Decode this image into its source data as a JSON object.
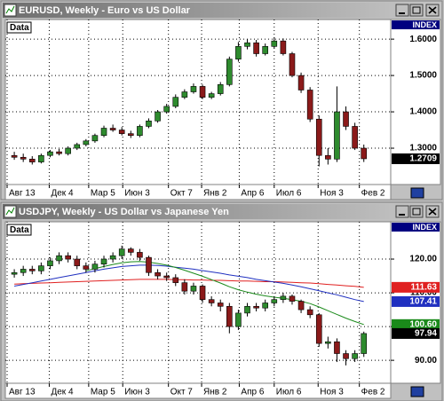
{
  "chart_data": [
    {
      "type": "candlestick",
      "title": "EURUSD, Weekly - Euro vs US Dollar",
      "legend_label": "Data",
      "axis_header": "INDEX",
      "up_color": "#2e8b2e",
      "down_color": "#8b1a1a",
      "open": [
        1.28,
        1.275,
        1.27,
        1.262,
        1.28,
        1.29,
        1.285,
        1.3,
        1.31,
        1.32,
        1.335,
        1.355,
        1.35,
        1.34,
        1.335,
        1.36,
        1.375,
        1.4,
        1.415,
        1.44,
        1.455,
        1.47,
        1.44,
        1.45,
        1.475,
        1.545,
        1.58,
        1.59,
        1.56,
        1.58,
        1.595,
        1.56,
        1.5,
        1.46,
        1.38,
        1.28,
        1.27,
        1.4,
        1.36,
        1.3
      ],
      "high": [
        1.29,
        1.285,
        1.278,
        1.285,
        1.295,
        1.298,
        1.305,
        1.315,
        1.325,
        1.34,
        1.362,
        1.365,
        1.358,
        1.348,
        1.365,
        1.382,
        1.405,
        1.422,
        1.448,
        1.462,
        1.478,
        1.475,
        1.455,
        1.482,
        1.552,
        1.592,
        1.6,
        1.598,
        1.588,
        1.605,
        1.602,
        1.565,
        1.508,
        1.468,
        1.39,
        1.3,
        1.47,
        1.415,
        1.37,
        1.31
      ],
      "low": [
        1.268,
        1.262,
        1.255,
        1.258,
        1.275,
        1.28,
        1.28,
        1.295,
        1.305,
        1.315,
        1.33,
        1.345,
        1.335,
        1.328,
        1.33,
        1.355,
        1.37,
        1.395,
        1.41,
        1.435,
        1.45,
        1.435,
        1.435,
        1.445,
        1.47,
        1.538,
        1.572,
        1.552,
        1.555,
        1.575,
        1.555,
        1.495,
        1.452,
        1.372,
        1.25,
        1.255,
        1.262,
        1.35,
        1.295,
        1.262
      ],
      "close": [
        1.275,
        1.27,
        1.262,
        1.28,
        1.29,
        1.285,
        1.3,
        1.31,
        1.32,
        1.335,
        1.355,
        1.35,
        1.34,
        1.335,
        1.36,
        1.375,
        1.4,
        1.415,
        1.44,
        1.455,
        1.47,
        1.44,
        1.45,
        1.475,
        1.545,
        1.58,
        1.59,
        1.56,
        1.58,
        1.595,
        1.56,
        1.5,
        1.46,
        1.38,
        1.28,
        1.27,
        1.4,
        1.36,
        1.3,
        1.2709
      ],
      "last_label": "1.2709",
      "last_color": "#000000",
      "ylim": [
        1.2,
        1.654
      ],
      "yticks": [
        {
          "value": 1.3,
          "label": "1.3000"
        },
        {
          "value": 1.4,
          "label": "1.4000"
        },
        {
          "value": 1.5,
          "label": "1.5000"
        },
        {
          "value": 1.6,
          "label": "1.6000"
        }
      ],
      "xlim": [
        -1,
        42
      ],
      "xticks": [
        {
          "value": -0.8,
          "label": "Авг 13"
        },
        {
          "value": 3.9,
          "label": "Дек 4"
        },
        {
          "value": 8.3,
          "label": "Мар 5"
        },
        {
          "value": 12.1,
          "label": "Июн 3"
        },
        {
          "value": 17.2,
          "label": "Окт 7"
        },
        {
          "value": 20.9,
          "label": "Янв 2"
        },
        {
          "value": 25.1,
          "label": "Апр 6"
        },
        {
          "value": 29,
          "label": "Июл 6"
        },
        {
          "value": 33.9,
          "label": "Ноя 3"
        },
        {
          "value": 38.5,
          "label": "Фев 2"
        }
      ],
      "grid": true
    },
    {
      "type": "candlestick",
      "title": "USDJPY, Weekly - US Dollar vs Japanese Yen",
      "legend_label": "Data",
      "axis_header": "INDEX",
      "up_color": "#2e8b2e",
      "down_color": "#8b1a1a",
      "open": [
        115.5,
        116,
        117,
        116.5,
        118,
        119.5,
        121,
        120,
        118,
        117,
        118.5,
        120,
        121,
        123,
        122,
        120.5,
        116,
        115,
        114.5,
        113,
        110.5,
        112,
        108,
        107,
        106,
        100,
        104,
        106,
        105.5,
        107,
        108,
        109,
        107.5,
        105,
        103.5,
        95,
        95.5,
        92,
        90.5,
        92
      ],
      "high": [
        117,
        118,
        118,
        119,
        120.5,
        122,
        122,
        121,
        119,
        119.5,
        121,
        122,
        124,
        123.5,
        123,
        121,
        117,
        116,
        115.5,
        114,
        113,
        112.5,
        109,
        108,
        107,
        105,
        107,
        107,
        108,
        109,
        110,
        109.5,
        108,
        106,
        104,
        97,
        96.5,
        93,
        93,
        98.5
      ],
      "low": [
        114.5,
        115,
        115.5,
        115.5,
        117,
        118.5,
        119,
        117,
        116,
        116,
        117.5,
        119,
        120,
        121,
        119.5,
        115,
        114,
        113.5,
        112,
        109.5,
        109.5,
        107,
        106,
        104.5,
        98,
        99,
        103,
        104.5,
        104.5,
        106,
        107,
        106.5,
        104,
        102.5,
        94,
        93.5,
        89.5,
        88.5,
        89.5,
        91
      ],
      "close": [
        116,
        117,
        116.5,
        118,
        119.5,
        121,
        120,
        118,
        117,
        118.5,
        120,
        121,
        123,
        122,
        120.5,
        116,
        115,
        114.5,
        113,
        110.5,
        112,
        108,
        107,
        106,
        100,
        104,
        106,
        105.5,
        107,
        108,
        109,
        107.5,
        105,
        103.5,
        95,
        95.5,
        92,
        90.5,
        92,
        97.94
      ],
      "last_label": "97.94",
      "last_color": "#000000",
      "series": [
        {
          "color": "#e02020",
          "last_label": "111.63",
          "values": [
            112.6,
            112.7,
            112.8,
            112.9,
            113.0,
            113.1,
            113.2,
            113.3,
            113.4,
            113.5,
            113.6,
            113.7,
            113.8,
            113.9,
            114.0,
            114.0,
            114.0,
            114.0,
            113.9,
            113.9,
            113.8,
            113.8,
            113.7,
            113.7,
            113.6,
            113.5,
            113.5,
            113.4,
            113.3,
            113.3,
            113.2,
            113.1,
            113.0,
            112.9,
            112.7,
            112.5,
            112.3,
            112.1,
            111.9,
            111.63
          ]
        },
        {
          "color": "#2030c0",
          "last_label": "107.41",
          "values": [
            112.0,
            112.5,
            113.0,
            113.5,
            114.0,
            114.5,
            115.0,
            115.5,
            116.0,
            116.5,
            117.0,
            117.4,
            117.8,
            118.0,
            118.2,
            118.2,
            118.1,
            117.9,
            117.6,
            117.3,
            117.0,
            116.6,
            116.2,
            115.8,
            115.3,
            114.9,
            114.5,
            114.0,
            113.6,
            113.2,
            112.8,
            112.3,
            111.8,
            111.2,
            110.6,
            110.0,
            109.4,
            108.7,
            108.0,
            107.41
          ]
        },
        {
          "color": "#1a8a1a",
          "last_label": "100.60",
          "values": [
            null,
            null,
            null,
            null,
            null,
            null,
            null,
            null,
            116.5,
            117.2,
            117.8,
            118.4,
            118.9,
            119.2,
            119.3,
            119.1,
            118.7,
            118.2,
            117.5,
            116.7,
            115.8,
            114.9,
            113.9,
            112.9,
            111.8,
            110.9,
            110.2,
            109.6,
            109.1,
            108.7,
            108.4,
            108.0,
            107.5,
            106.8,
            105.8,
            104.7,
            103.6,
            102.5,
            101.5,
            100.6
          ]
        }
      ],
      "ylim": [
        83.2,
        131.05
      ],
      "yticks": [
        {
          "value": 90,
          "label": "90.00"
        },
        {
          "value": 100,
          "label": "100.00"
        },
        {
          "value": 110,
          "label": "110.00"
        },
        {
          "value": 120,
          "label": "120.00"
        }
      ],
      "xlim": [
        -1,
        42
      ],
      "xticks": [
        {
          "value": -0.8,
          "label": "Авг 13"
        },
        {
          "value": 3.9,
          "label": "Дек 4"
        },
        {
          "value": 8.3,
          "label": "Мар 5"
        },
        {
          "value": 12.1,
          "label": "Июн 3"
        },
        {
          "value": 17.2,
          "label": "Окт 7"
        },
        {
          "value": 20.9,
          "label": "Янв 2"
        },
        {
          "value": 25.1,
          "label": "Апр 6"
        },
        {
          "value": 29,
          "label": "Июл 6"
        },
        {
          "value": 33.9,
          "label": "Ноя 3"
        },
        {
          "value": 38.5,
          "label": "Фев 2"
        }
      ],
      "grid": true
    }
  ]
}
